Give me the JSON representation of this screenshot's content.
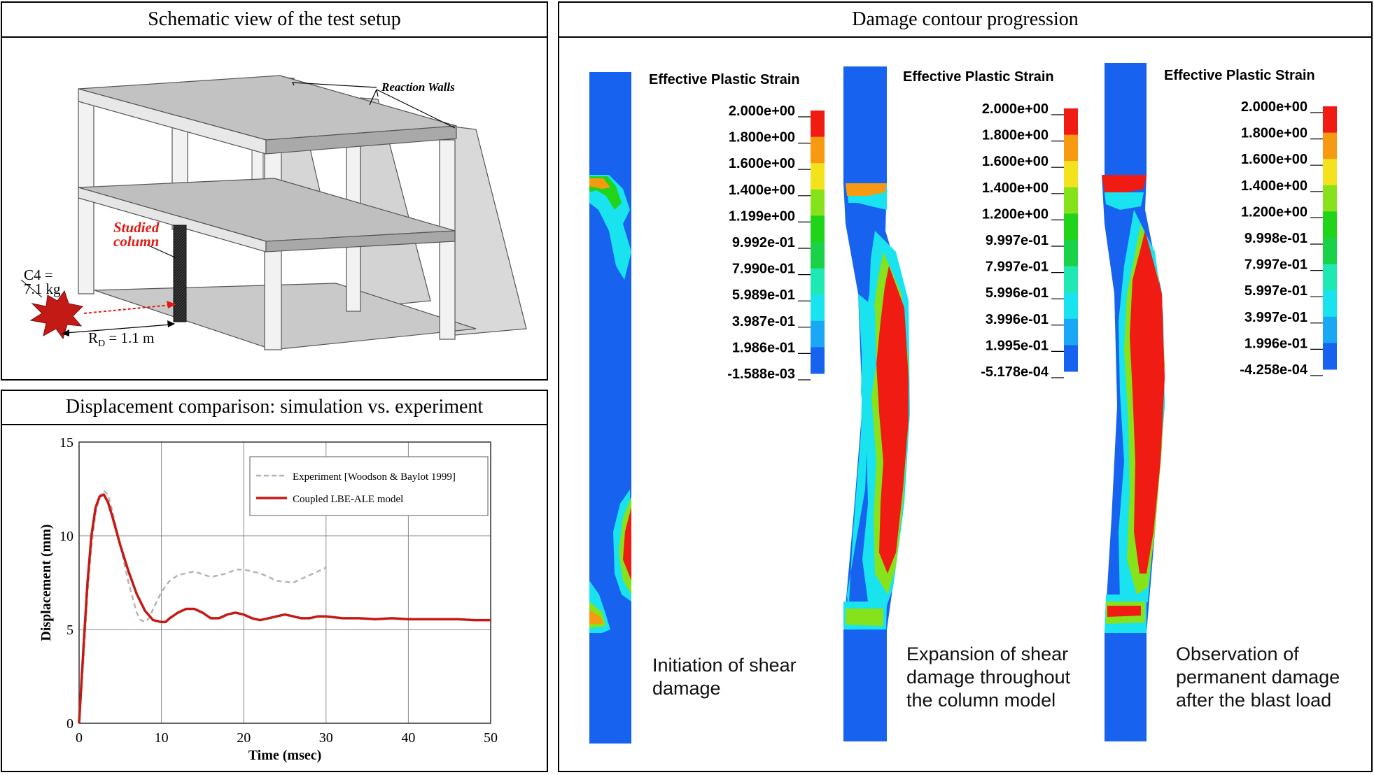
{
  "panels": {
    "setup": {
      "title": "Schematic  view  of the  test  setup",
      "labels": {
        "reaction_walls": "Reaction Walls",
        "studied_column_1": "Studied",
        "studied_column_2": "column",
        "charge_1": "C4 =",
        "charge_2": "7.1 kg",
        "standoff_main": "R",
        "standoff_sub": "D",
        "standoff_rest": " = 1.1 m"
      }
    },
    "displacement": {
      "title": "Displacement  comparison:  simulation  vs.  experiment"
    },
    "damage": {
      "title": "Damage  contour  progression"
    }
  },
  "chart_data": {
    "type": "line",
    "xlabel": "Time (msec)",
    "ylabel": "Displacement (mm)",
    "xlim": [
      0,
      50
    ],
    "ylim": [
      0,
      15
    ],
    "xticks": [
      0,
      10,
      20,
      30,
      40,
      50
    ],
    "yticks": [
      0,
      5,
      10,
      15
    ],
    "grid": true,
    "legend_position": "top-right",
    "series": [
      {
        "name": "Experiment  [Woodson  &  Baylot  1999]",
        "style": "dashed",
        "color": "#b4b4b4",
        "x": [
          0,
          0.5,
          1,
          1.5,
          2,
          2.5,
          3,
          3.5,
          4,
          5,
          6,
          7,
          7.5,
          8,
          8.5,
          9,
          10,
          11,
          12,
          14,
          16,
          18,
          19,
          20,
          21,
          22,
          24,
          26,
          27,
          28,
          30
        ],
        "y": [
          0,
          3.2,
          6.8,
          9.4,
          11.2,
          12.1,
          12.4,
          12.2,
          11.4,
          9.5,
          7.5,
          5.9,
          5.5,
          5.4,
          5.6,
          6.1,
          7.0,
          7.6,
          7.9,
          8.1,
          7.8,
          8.0,
          8.2,
          8.2,
          8.1,
          8.0,
          7.6,
          7.5,
          7.7,
          7.9,
          8.3
        ]
      },
      {
        "name": "Coupled  LBE-ALE  model",
        "style": "solid",
        "color": "#c41a16",
        "x": [
          0,
          0.5,
          1,
          1.5,
          2,
          2.5,
          3,
          3.5,
          4,
          4.5,
          5,
          6,
          7,
          8,
          9,
          10,
          10.5,
          11,
          12,
          13,
          14,
          15,
          16,
          17,
          18,
          19,
          20,
          21,
          22,
          23,
          24,
          25,
          26,
          27,
          28,
          29,
          30,
          32,
          34,
          36,
          38,
          40,
          42,
          44,
          46,
          48,
          50
        ],
        "y": [
          0,
          3.8,
          7.4,
          10.0,
          11.5,
          12.1,
          12.2,
          11.8,
          11.1,
          10.3,
          9.5,
          8.1,
          6.9,
          6.0,
          5.5,
          5.4,
          5.4,
          5.6,
          5.9,
          6.1,
          6.1,
          5.9,
          5.6,
          5.6,
          5.8,
          5.9,
          5.8,
          5.6,
          5.5,
          5.6,
          5.7,
          5.8,
          5.7,
          5.6,
          5.6,
          5.7,
          5.7,
          5.6,
          5.6,
          5.55,
          5.6,
          5.55,
          5.55,
          5.55,
          5.55,
          5.5,
          5.5
        ]
      }
    ]
  },
  "damage_contours": {
    "legend_title": "Effective Plastic Strain",
    "colors": [
      "#0a2fd6",
      "#1763f0",
      "#1aa7f5",
      "#19e3ef",
      "#1fe8b3",
      "#19d24a",
      "#21d419",
      "#86e21b",
      "#f4e21c",
      "#f79a12",
      "#f01b12"
    ],
    "legends": [
      [
        "2.000e+00",
        "1.800e+00",
        "1.600e+00",
        "1.400e+00",
        "1.199e+00",
        "9.992e-01",
        "7.990e-01",
        "5.989e-01",
        "3.987e-01",
        "1.986e-01",
        "-1.588e-03"
      ],
      [
        "2.000e+00",
        "1.800e+00",
        "1.600e+00",
        "1.400e+00",
        "1.200e+00",
        "9.997e-01",
        "7.997e-01",
        "5.996e-01",
        "3.996e-01",
        "1.995e-01",
        "-5.178e-04"
      ],
      [
        "2.000e+00",
        "1.800e+00",
        "1.600e+00",
        "1.400e+00",
        "1.200e+00",
        "9.998e-01",
        "7.997e-01",
        "5.997e-01",
        "3.997e-01",
        "1.996e-01",
        "-4.258e-04"
      ]
    ],
    "captions": [
      [
        "Initiation of shear",
        "damage"
      ],
      [
        "Expansion of shear",
        "damage throughout",
        "the column model"
      ],
      [
        "Observation of",
        "permanent damage",
        "after the blast load"
      ]
    ]
  }
}
